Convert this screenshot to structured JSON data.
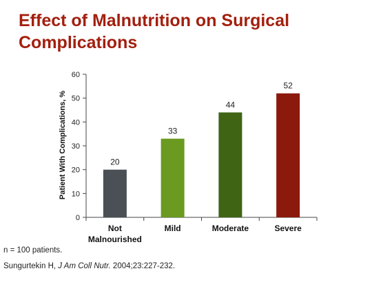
{
  "slide": {
    "title": "Effect of Malnutrition on Surgical Complications"
  },
  "footnotes": {
    "note": "n = 100 patients.",
    "citation_author": "Sungurtekin H, ",
    "citation_journal": "J Am Coll Nutr.",
    "citation_rest": " 2004;23:227-232."
  },
  "chart_data": {
    "type": "bar",
    "categories": [
      "Not Malnourished",
      "Mild",
      "Moderate",
      "Severe"
    ],
    "category_lines": [
      [
        "Not",
        "Malnourished"
      ],
      [
        "Mild"
      ],
      [
        "Moderate"
      ],
      [
        "Severe"
      ]
    ],
    "values": [
      20,
      33,
      44,
      52
    ],
    "bar_colors": [
      "#4a5055",
      "#6a9a1f",
      "#3f6414",
      "#8b1a0d"
    ],
    "ylabel": "Patient With Complications, %",
    "xlabel": "",
    "ylim": [
      0,
      60
    ],
    "yticks": [
      0,
      10,
      20,
      30,
      40,
      50,
      60
    ],
    "grid": false,
    "data_labels": true
  }
}
